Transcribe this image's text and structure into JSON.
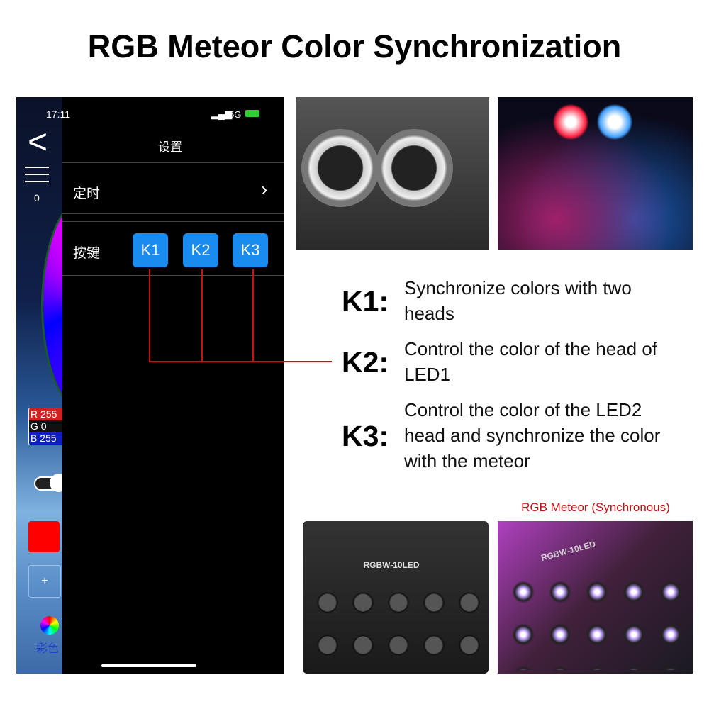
{
  "title": "RGB Meteor Color Synchronization",
  "phone": {
    "status_time": "17:11",
    "network": "5G",
    "screen_title": "设置",
    "timer_label": "定时",
    "keys_label": "按键",
    "keys": [
      "K1",
      "K2",
      "K3"
    ],
    "side_count": "0",
    "rgb": {
      "r": "R 255",
      "g": "G  0",
      "b": "B 255"
    },
    "add_label": "+",
    "color_label": "彩色",
    "swatch_color": "#ff0000",
    "key_color": "#1a8cf0"
  },
  "descriptions": [
    {
      "key": "K1:",
      "text": "Synchronize colors with two heads"
    },
    {
      "key": "K2:",
      "text": "Control the color of the head of LED1"
    },
    {
      "key": "K3:",
      "text": "Control the color of the LED2 head and synchronize the color with the meteor"
    }
  ],
  "caption": "RGB Meteor (Synchronous)",
  "device_label": "RGBW-10LED",
  "device_label_2": "RGBW-10LED"
}
